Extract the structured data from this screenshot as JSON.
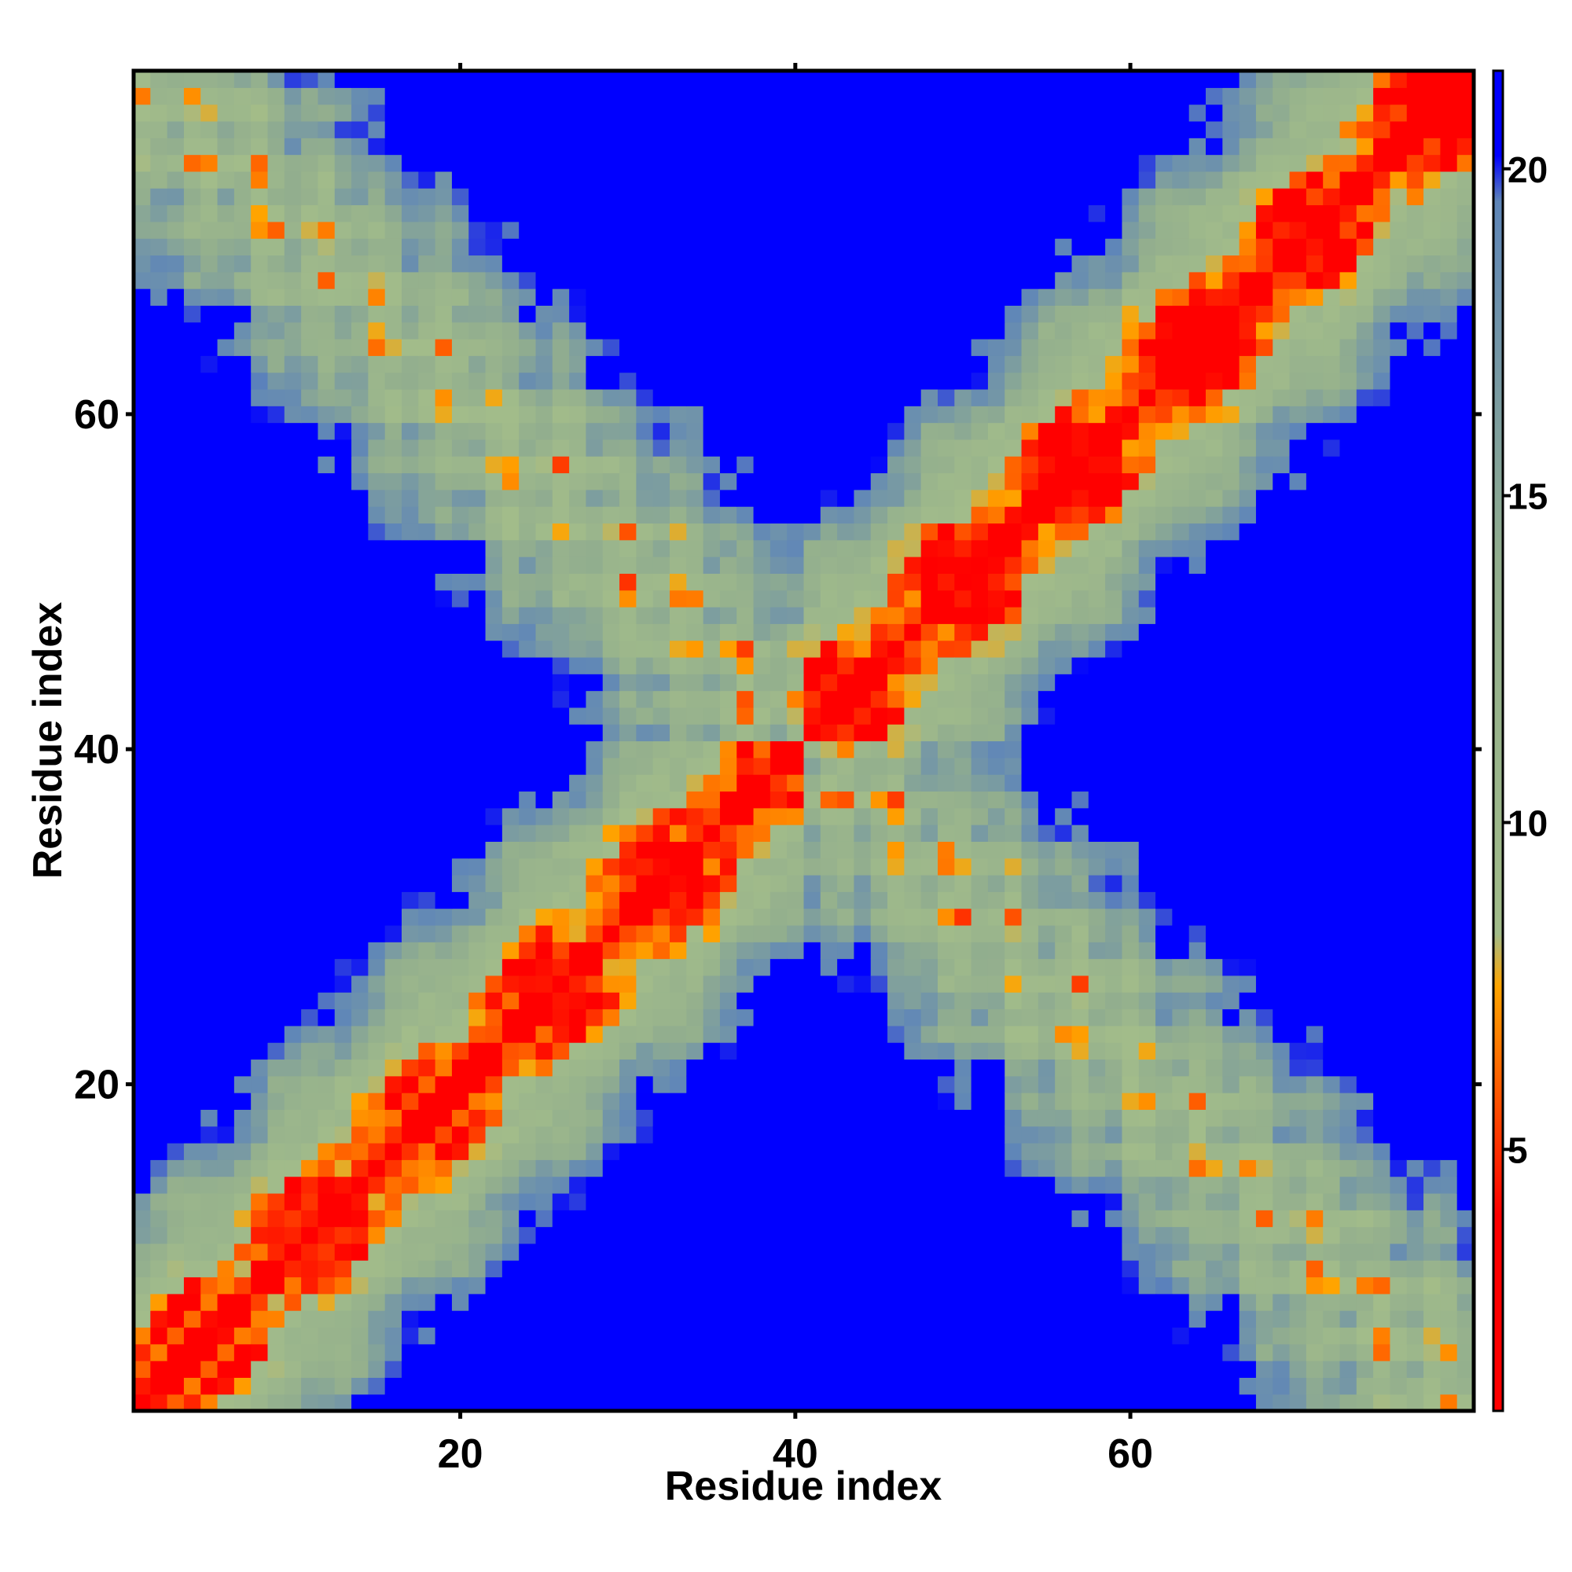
{
  "chart_data": {
    "type": "heatmap",
    "title": "",
    "xlabel": "Residue index",
    "ylabel": "Residue index",
    "n_residues": 80,
    "xlim": [
      1,
      80
    ],
    "ylim": [
      1,
      80
    ],
    "x_ticks": [
      20,
      40,
      60
    ],
    "y_ticks": [
      20,
      40,
      60
    ],
    "colorbar": {
      "range": [
        1,
        21.5
      ],
      "ticks": [
        5,
        10,
        15,
        20
      ],
      "stops": [
        {
          "value": 1,
          "color": "#ff0000"
        },
        {
          "value": 4,
          "color": "#ff0000"
        },
        {
          "value": 7.5,
          "color": "#ffa500"
        },
        {
          "value": 8.3,
          "color": "#a2bc8a"
        },
        {
          "value": 14,
          "color": "#92ae8e"
        },
        {
          "value": 19.5,
          "color": "#5f86b8"
        },
        {
          "value": 20.2,
          "color": "#0000ff"
        }
      ]
    },
    "values_note": "Symmetric pairwise residue distance map; cell values generated by the script as the distance between residues i and j.",
    "grid": false,
    "legend": "colorbar-right"
  }
}
